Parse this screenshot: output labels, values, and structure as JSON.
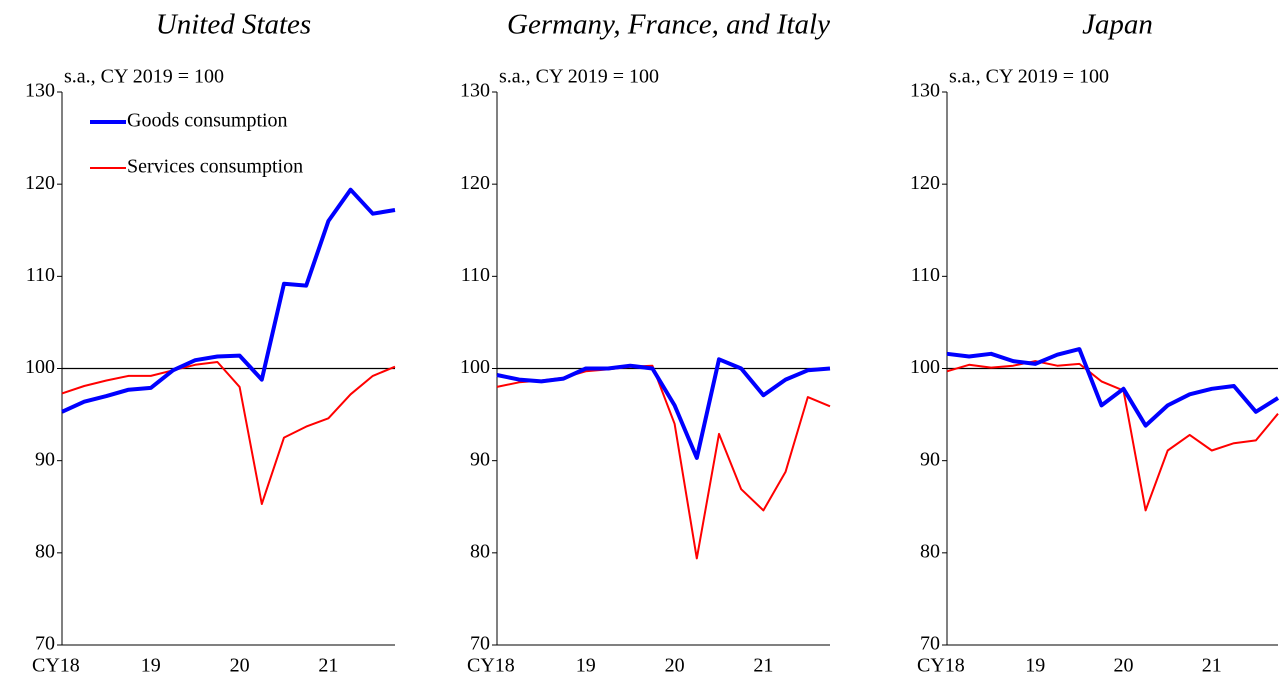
{
  "chart_data": [
    {
      "type": "line",
      "title": "United States",
      "annotation": "s.a., CY 2019 = 100",
      "categories": [
        "CY18",
        null,
        null,
        null,
        "19",
        null,
        null,
        null,
        "20",
        null,
        null,
        null,
        "21",
        null,
        null,
        null
      ],
      "series": [
        {
          "name": "Goods consumption",
          "color": "#0000ff",
          "values": [
            95.3,
            96.4,
            97.0,
            97.7,
            97.9,
            99.8,
            100.9,
            101.3,
            101.4,
            98.8,
            109.2,
            109.0,
            116.0,
            119.4,
            116.8,
            117.2
          ]
        },
        {
          "name": "Services consumption",
          "color": "#ff0000",
          "values": [
            97.3,
            98.1,
            98.7,
            99.2,
            99.2,
            99.8,
            100.4,
            100.7,
            98.0,
            85.3,
            92.5,
            93.7,
            94.6,
            97.2,
            99.2,
            100.2
          ]
        }
      ],
      "ylim": [
        70,
        130
      ],
      "yticks": [
        70,
        80,
        90,
        100,
        110,
        120,
        130
      ],
      "reference_line": 100,
      "legend": "upper left"
    },
    {
      "type": "line",
      "title": "Germany, France, and Italy",
      "annotation": "s.a., CY 2019 = 100",
      "categories": [
        "CY18",
        null,
        null,
        null,
        "19",
        null,
        null,
        null,
        "20",
        null,
        null,
        null,
        "21",
        null,
        null,
        null
      ],
      "series": [
        {
          "color": "#0000ff",
          "values": [
            99.3,
            98.8,
            98.6,
            98.9,
            100.0,
            100.0,
            100.3,
            100.0,
            96.0,
            90.3,
            101.0,
            100.0,
            97.1,
            98.8,
            99.8,
            100.0
          ]
        },
        {
          "color": "#ff0000",
          "values": [
            98.0,
            98.5,
            98.7,
            99.0,
            99.7,
            99.9,
            100.2,
            100.3,
            94.0,
            79.4,
            92.9,
            86.9,
            84.6,
            88.8,
            96.9,
            95.9
          ]
        }
      ],
      "ylim": [
        70,
        130
      ],
      "yticks": [
        70,
        80,
        90,
        100,
        110,
        120,
        130
      ],
      "reference_line": 100
    },
    {
      "type": "line",
      "title": "Japan",
      "annotation": "s.a., CY 2019 = 100",
      "categories": [
        "CY18",
        null,
        null,
        null,
        "19",
        null,
        null,
        null,
        "20",
        null,
        null,
        null,
        "21",
        null,
        null,
        null
      ],
      "series": [
        {
          "color": "#0000ff",
          "values": [
            101.6,
            101.3,
            101.6,
            100.8,
            100.5,
            101.5,
            102.1,
            96.0,
            97.8,
            93.8,
            96.0,
            97.2,
            97.8,
            98.1,
            95.3,
            96.8
          ]
        },
        {
          "color": "#ff0000",
          "values": [
            99.7,
            100.4,
            100.1,
            100.3,
            100.8,
            100.3,
            100.5,
            98.6,
            97.6,
            84.6,
            91.1,
            92.8,
            91.1,
            91.9,
            92.2,
            95.1
          ]
        }
      ],
      "ylim": [
        70,
        130
      ],
      "yticks": [
        70,
        80,
        90,
        100,
        110,
        120,
        130
      ],
      "reference_line": 100
    }
  ]
}
